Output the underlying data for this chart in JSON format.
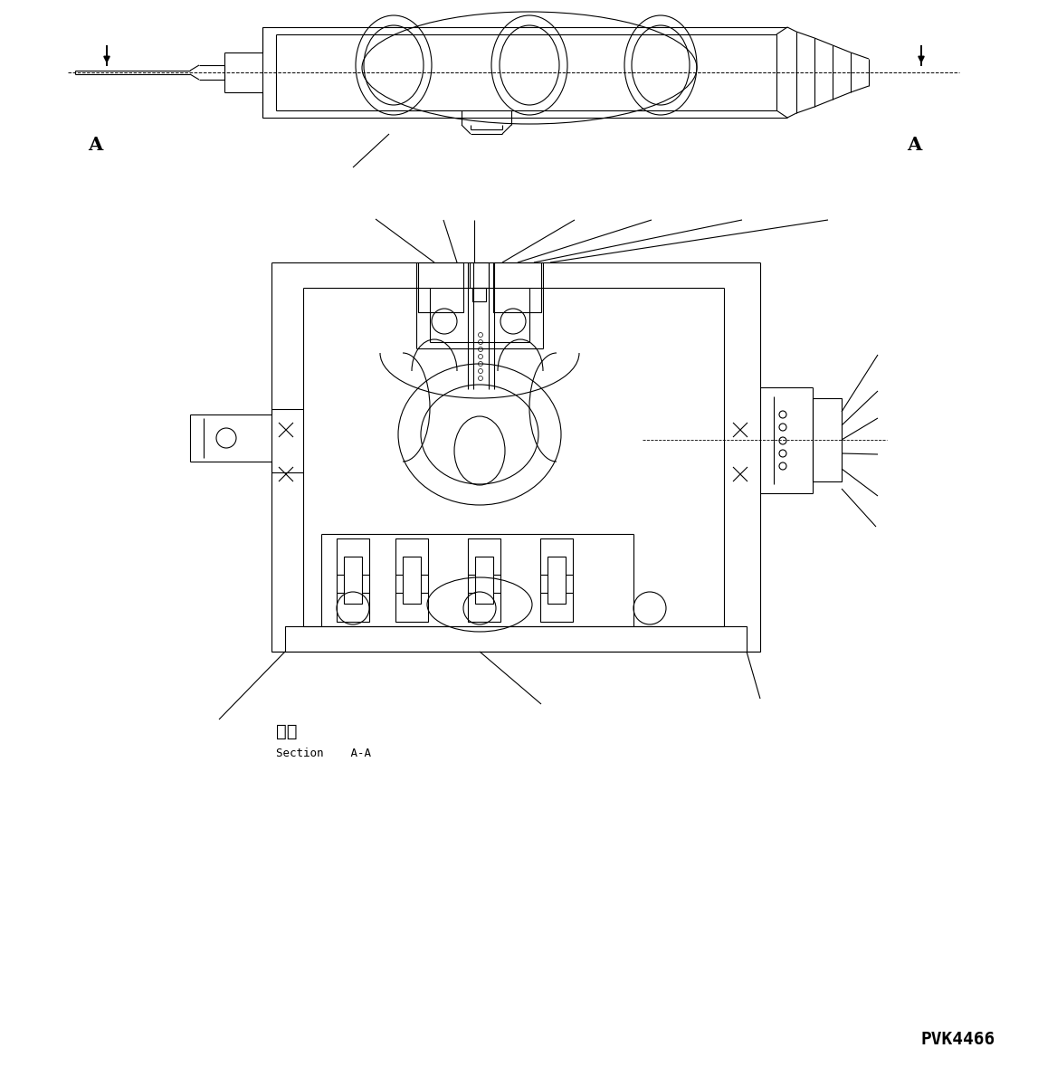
{
  "bg_color": "#ffffff",
  "line_color": "#000000",
  "fig_width": 11.68,
  "fig_height": 11.79,
  "section_label_japanese": "断面",
  "section_label_english": "Section    A-A",
  "part_number": "PVK4466"
}
